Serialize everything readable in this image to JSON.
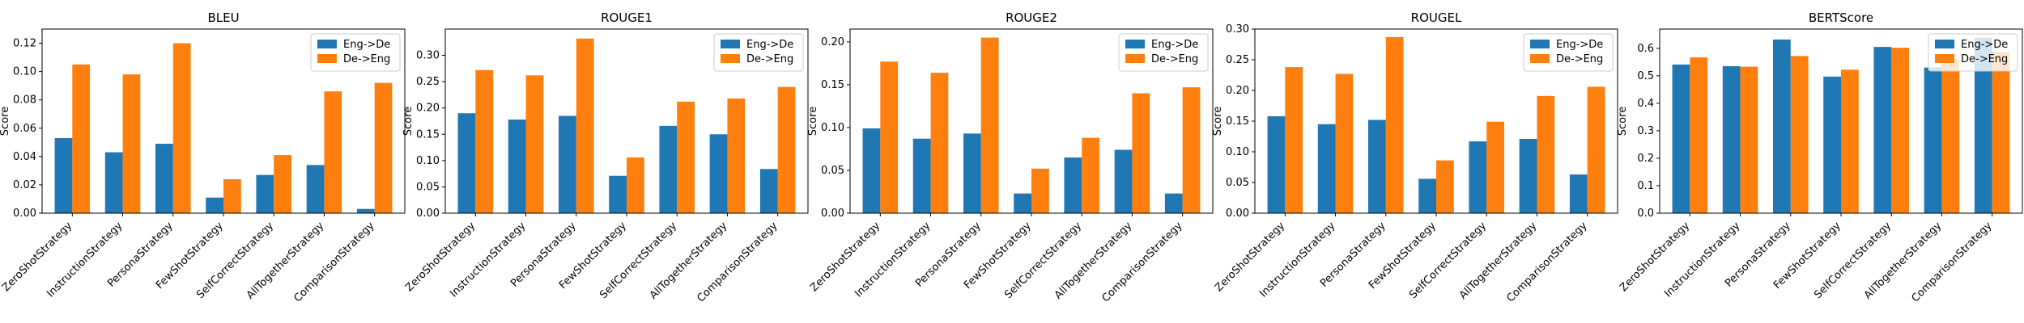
{
  "colors": {
    "eng_de": "#1f77b4",
    "de_eng": "#ff7f0e"
  },
  "chart_data": [
    {
      "type": "bar",
      "title": "BLEU",
      "ylabel": "Score",
      "ylim": [
        0,
        0.13
      ],
      "yticks": [
        0.0,
        0.02,
        0.04,
        0.06,
        0.08,
        0.1,
        0.12
      ],
      "ytick_labels": [
        "0.00",
        "0.02",
        "0.04",
        "0.06",
        "0.08",
        "0.10",
        "0.12"
      ],
      "categories": [
        "ZeroShotStrategy",
        "InstructionStrategy",
        "PersonaStrategy",
        "FewShotStrategy",
        "SelfCorrectStrategy",
        "AllTogetherStrategy",
        "ComparisonStrategy"
      ],
      "series": [
        {
          "name": "Eng->De",
          "values": [
            0.053,
            0.043,
            0.049,
            0.011,
            0.027,
            0.034,
            0.003
          ]
        },
        {
          "name": "De->Eng",
          "values": [
            0.105,
            0.098,
            0.12,
            0.024,
            0.041,
            0.086,
            0.092
          ]
        }
      ],
      "legend": "top-right",
      "grid": false
    },
    {
      "type": "bar",
      "title": "ROUGE1",
      "ylabel": "Score",
      "ylim": [
        0,
        0.35
      ],
      "yticks": [
        0.0,
        0.05,
        0.1,
        0.15,
        0.2,
        0.25,
        0.3
      ],
      "ytick_labels": [
        "0.00",
        "0.05",
        "0.10",
        "0.15",
        "0.20",
        "0.25",
        "0.30"
      ],
      "categories": [
        "ZeroShotStrategy",
        "InstructionStrategy",
        "PersonaStrategy",
        "FewShotStrategy",
        "SelfCorrectStrategy",
        "AllTogetherStrategy",
        "ComparisonStrategy"
      ],
      "series": [
        {
          "name": "Eng->De",
          "values": [
            0.19,
            0.178,
            0.185,
            0.071,
            0.166,
            0.15,
            0.084
          ]
        },
        {
          "name": "De->Eng",
          "values": [
            0.272,
            0.262,
            0.332,
            0.106,
            0.212,
            0.218,
            0.24
          ]
        }
      ],
      "legend": "top-right",
      "grid": false
    },
    {
      "type": "bar",
      "title": "ROUGE2",
      "ylabel": "Score",
      "ylim": [
        0,
        0.215
      ],
      "yticks": [
        0.0,
        0.05,
        0.1,
        0.15,
        0.2
      ],
      "ytick_labels": [
        "0.00",
        "0.05",
        "0.10",
        "0.15",
        "0.20"
      ],
      "categories": [
        "ZeroShotStrategy",
        "InstructionStrategy",
        "PersonaStrategy",
        "FewShotStrategy",
        "SelfCorrectStrategy",
        "AllTogetherStrategy",
        "ComparisonStrategy"
      ],
      "series": [
        {
          "name": "Eng->De",
          "values": [
            0.099,
            0.087,
            0.093,
            0.023,
            0.065,
            0.074,
            0.023
          ]
        },
        {
          "name": "De->Eng",
          "values": [
            0.177,
            0.164,
            0.205,
            0.052,
            0.088,
            0.14,
            0.147
          ]
        }
      ],
      "legend": "top-right",
      "grid": false
    },
    {
      "type": "bar",
      "title": "ROUGEL",
      "ylabel": "Score",
      "ylim": [
        0,
        0.3
      ],
      "yticks": [
        0.0,
        0.05,
        0.1,
        0.15,
        0.2,
        0.25,
        0.3
      ],
      "ytick_labels": [
        "0.00",
        "0.05",
        "0.10",
        "0.15",
        "0.20",
        "0.25",
        "0.30"
      ],
      "categories": [
        "ZeroShotStrategy",
        "InstructionStrategy",
        "PersonaStrategy",
        "FewShotStrategy",
        "SelfCorrectStrategy",
        "AllTogetherStrategy",
        "ComparisonStrategy"
      ],
      "series": [
        {
          "name": "Eng->De",
          "values": [
            0.158,
            0.145,
            0.152,
            0.056,
            0.117,
            0.121,
            0.063
          ]
        },
        {
          "name": "De->Eng",
          "values": [
            0.238,
            0.227,
            0.287,
            0.086,
            0.149,
            0.191,
            0.206
          ]
        }
      ],
      "legend": "top-right",
      "grid": false
    },
    {
      "type": "bar",
      "title": "BERTScore",
      "ylabel": "Score",
      "ylim": [
        0,
        0.67
      ],
      "yticks": [
        0.0,
        0.1,
        0.2,
        0.3,
        0.4,
        0.5,
        0.6
      ],
      "ytick_labels": [
        "0.0",
        "0.1",
        "0.2",
        "0.3",
        "0.4",
        "0.5",
        "0.6"
      ],
      "categories": [
        "ZeroShotStrategy",
        "InstructionStrategy",
        "PersonaStrategy",
        "FewShotStrategy",
        "SelfCorrectStrategy",
        "AllTogetherStrategy",
        "ComparisonStrategy"
      ],
      "series": [
        {
          "name": "Eng->De",
          "values": [
            0.541,
            0.535,
            0.632,
            0.497,
            0.605,
            0.53,
            0.638
          ]
        },
        {
          "name": "De->Eng",
          "values": [
            0.567,
            0.533,
            0.572,
            0.522,
            0.602,
            0.561,
            0.587
          ]
        }
      ],
      "legend": "top-right",
      "grid": false
    }
  ]
}
